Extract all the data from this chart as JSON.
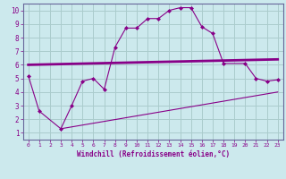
{
  "xlabel": "Windchill (Refroidissement éolien,°C)",
  "bg_color": "#cce9ed",
  "line_color": "#880088",
  "grid_color": "#aacccc",
  "spine_color": "#666699",
  "xlim": [
    -0.5,
    23.5
  ],
  "ylim": [
    0.5,
    10.5
  ],
  "xticks": [
    0,
    1,
    2,
    3,
    4,
    5,
    6,
    7,
    8,
    9,
    10,
    11,
    12,
    13,
    14,
    15,
    16,
    17,
    18,
    19,
    20,
    21,
    22,
    23
  ],
  "yticks": [
    1,
    2,
    3,
    4,
    5,
    6,
    7,
    8,
    9,
    10
  ],
  "line1_x": [
    0,
    1,
    3,
    4,
    5,
    6,
    7,
    8,
    9,
    10,
    11,
    12,
    13,
    14,
    15,
    16,
    17,
    18,
    20,
    21,
    22,
    23
  ],
  "line1_y": [
    5.2,
    2.6,
    1.3,
    3.0,
    4.8,
    5.0,
    4.2,
    7.3,
    8.7,
    8.7,
    9.4,
    9.4,
    10.0,
    10.2,
    10.2,
    8.8,
    8.3,
    6.1,
    6.1,
    5.0,
    4.8,
    4.9
  ],
  "line2_x": [
    0,
    23
  ],
  "line2_y": [
    6.0,
    6.4
  ],
  "line3_x": [
    3,
    23
  ],
  "line3_y": [
    1.3,
    4.0
  ]
}
